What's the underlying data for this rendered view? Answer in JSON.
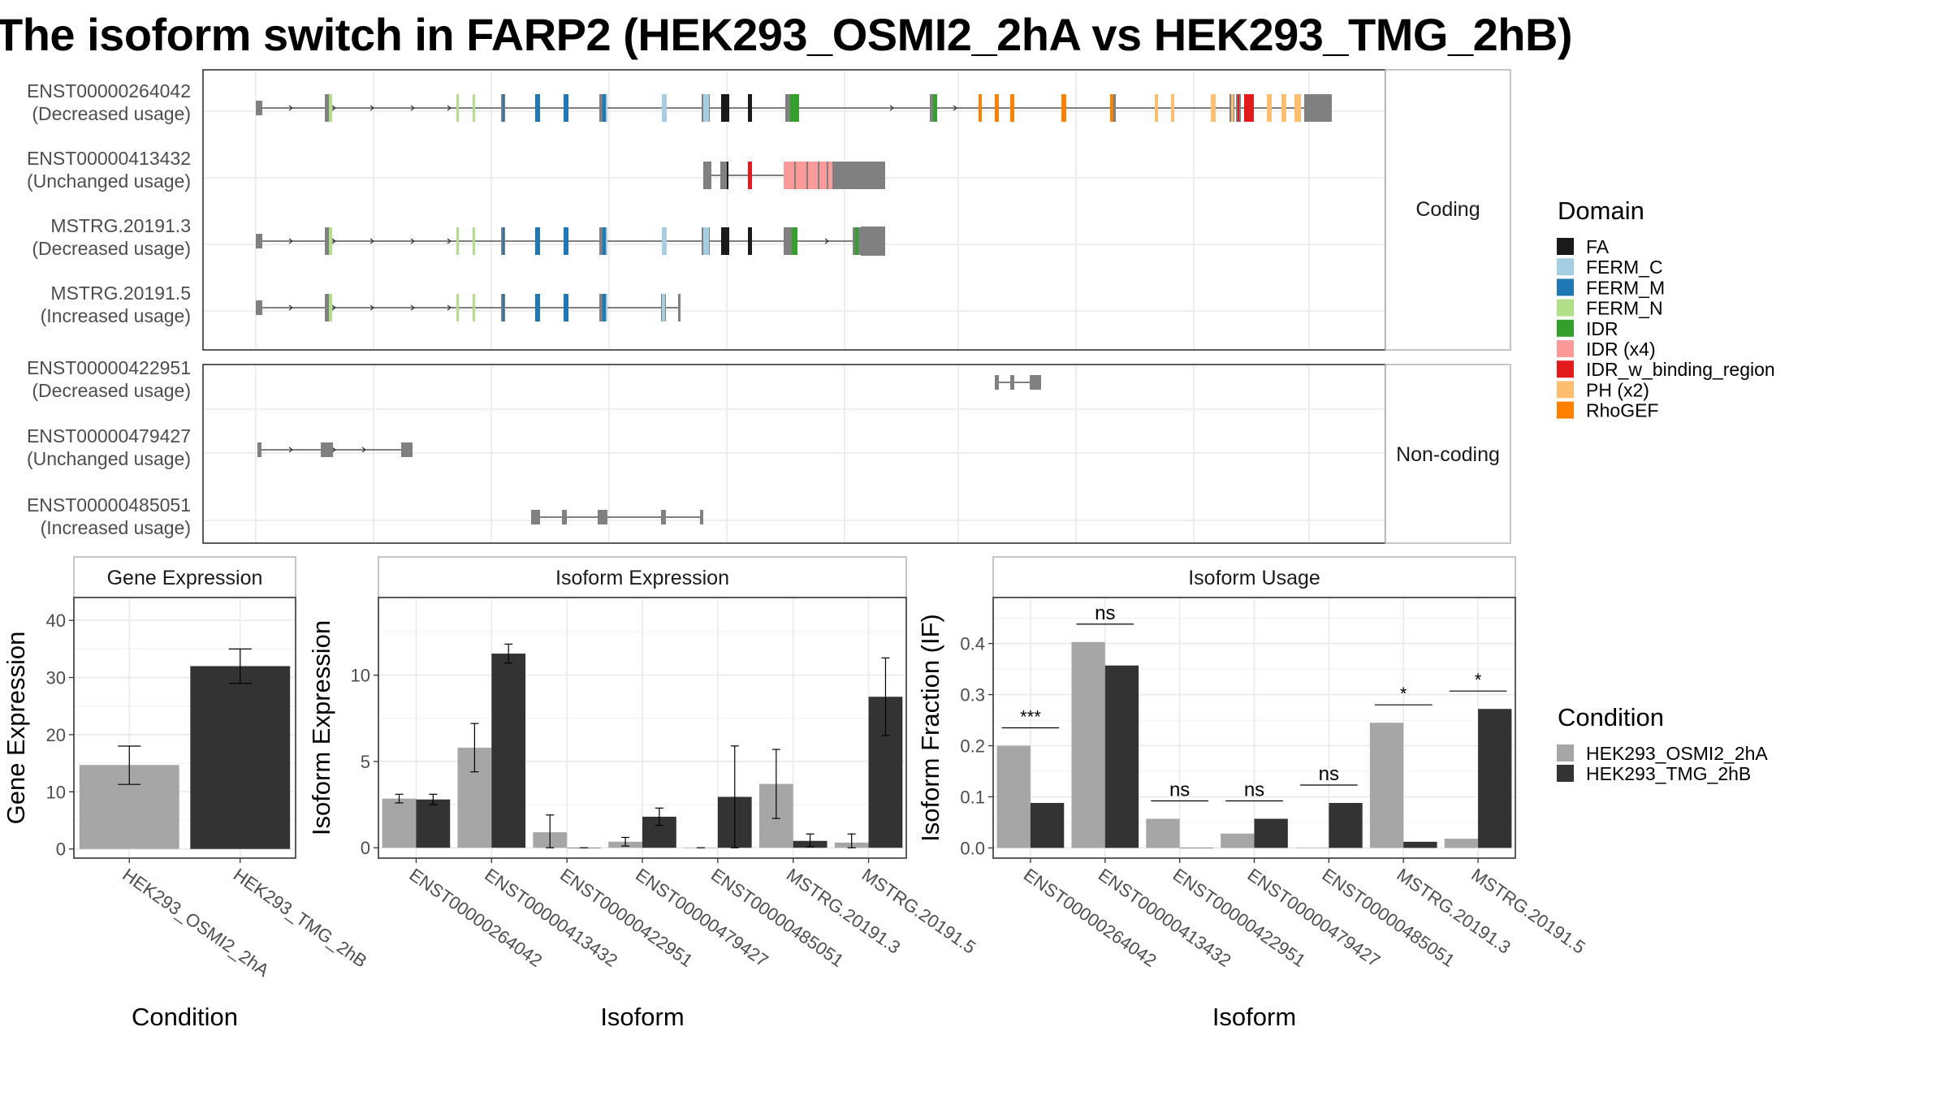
{
  "title": "The isoform switch in FARP2 (HEK293_OSMI2_2hA vs HEK293_TMG_2hB)",
  "structure_panel": {
    "coding_strip": "Coding",
    "noncoding_strip": "Non-coding",
    "coding_isoforms": [
      {
        "id": "ENST00000264042",
        "usage": "(Decreased usage)"
      },
      {
        "id": "ENST00000413432",
        "usage": "(Unchanged usage)"
      },
      {
        "id": "MSTRG.20191.3",
        "usage": "(Decreased usage)"
      },
      {
        "id": "MSTRG.20191.5",
        "usage": "(Increased usage)"
      }
    ],
    "noncoding_isoforms": [
      {
        "id": "ENST00000422951",
        "usage": "(Decreased usage)"
      },
      {
        "id": "ENST00000479427",
        "usage": "(Unchanged usage)"
      },
      {
        "id": "ENST00000485051",
        "usage": "(Increased usage)"
      }
    ]
  },
  "domain_legend": {
    "title": "Domain",
    "items": [
      {
        "label": "FA",
        "color": "#1a1a1a"
      },
      {
        "label": "FERM_C",
        "color": "#a6cee3"
      },
      {
        "label": "FERM_M",
        "color": "#1f78b4"
      },
      {
        "label": "FERM_N",
        "color": "#b2df8a"
      },
      {
        "label": "IDR",
        "color": "#33a02c"
      },
      {
        "label": "IDR (x4)",
        "color": "#fb9a99"
      },
      {
        "label": "IDR_w_binding_region",
        "color": "#e31a1c"
      },
      {
        "label": "PH (x2)",
        "color": "#fdbf6f"
      },
      {
        "label": "RhoGEF",
        "color": "#ff7f00"
      }
    ]
  },
  "condition_legend": {
    "title": "Condition",
    "items": [
      {
        "label": "HEK293_OSMI2_2hA",
        "color": "#a6a6a6"
      },
      {
        "label": "HEK293_TMG_2hB",
        "color": "#333333"
      }
    ]
  },
  "chart_data": [
    {
      "type": "bar",
      "title": "Gene Expression",
      "xlabel": "Condition",
      "ylabel": "Gene Expression",
      "categories": [
        "HEK293_OSMI2_2hA",
        "HEK293_TMG_2hB"
      ],
      "values": [
        14.7,
        32.0
      ],
      "error_low": [
        11.3,
        29.0
      ],
      "error_high": [
        18.0,
        35.0
      ],
      "colors": [
        "#a6a6a6",
        "#333333"
      ],
      "ylim": [
        -1.6,
        44
      ],
      "yticks": [
        0,
        10,
        20,
        30,
        40
      ]
    },
    {
      "type": "bar",
      "title": "Isoform Expression",
      "xlabel": "Isoform",
      "ylabel": "Isoform Expression",
      "categories": [
        "ENST00000264042",
        "ENST00000413432",
        "ENST00000422951",
        "ENST00000479427",
        "ENST00000485051",
        "MSTRG.20191.3",
        "MSTRG.20191.5"
      ],
      "series": [
        {
          "name": "HEK293_OSMI2_2hA",
          "values": [
            2.85,
            5.8,
            0.9,
            0.35,
            0.0,
            3.7,
            0.3
          ],
          "err_low": [
            2.6,
            4.4,
            0.0,
            0.1,
            0.0,
            1.7,
            0.0
          ],
          "err_high": [
            3.1,
            7.2,
            1.9,
            0.6,
            0.0,
            5.7,
            0.8
          ]
        },
        {
          "name": "HEK293_TMG_2hB",
          "values": [
            2.8,
            11.25,
            0.0,
            1.8,
            2.95,
            0.4,
            8.75
          ],
          "err_low": [
            2.5,
            10.7,
            0.0,
            1.3,
            0.0,
            0.05,
            6.5
          ],
          "err_high": [
            3.1,
            11.8,
            0.0,
            2.3,
            5.9,
            0.8,
            11.0
          ]
        }
      ],
      "colors": [
        "#a6a6a6",
        "#333333"
      ],
      "ylim": [
        -0.6,
        14.5
      ],
      "yticks": [
        0,
        5,
        10
      ]
    },
    {
      "type": "bar",
      "title": "Isoform Usage",
      "xlabel": "Isoform",
      "ylabel": "Isoform Fraction (IF)",
      "categories": [
        "ENST00000264042",
        "ENST00000413432",
        "ENST00000422951",
        "ENST00000479427",
        "ENST00000485051",
        "MSTRG.20191.3",
        "MSTRG.20191.5"
      ],
      "series": [
        {
          "name": "HEK293_OSMI2_2hA",
          "values": [
            0.2,
            0.403,
            0.057,
            0.028,
            0.0,
            0.245,
            0.018
          ]
        },
        {
          "name": "HEK293_TMG_2hB",
          "values": [
            0.088,
            0.357,
            0.0,
            0.057,
            0.088,
            0.012,
            0.272
          ]
        }
      ],
      "significance": [
        "***",
        "ns",
        "ns",
        "ns",
        "ns",
        "*",
        "*"
      ],
      "colors": [
        "#a6a6a6",
        "#333333"
      ],
      "ylim": [
        -0.02,
        0.49
      ],
      "yticks": [
        0.0,
        0.1,
        0.2,
        0.3,
        0.4
      ],
      "ytick_labels": [
        "0.0",
        "0.1",
        "0.2",
        "0.3",
        "0.4"
      ]
    }
  ]
}
